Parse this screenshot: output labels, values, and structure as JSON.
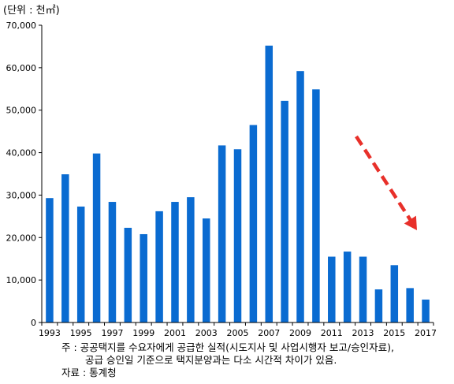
{
  "chart_data": {
    "type": "bar",
    "unit_label": "(단위 : 천㎡)",
    "x": [
      1993,
      1994,
      1995,
      1996,
      1997,
      1998,
      1999,
      2000,
      2001,
      2002,
      2003,
      2004,
      2005,
      2006,
      2007,
      2008,
      2009,
      2010,
      2011,
      2012,
      2013,
      2014,
      2015,
      2016,
      2017
    ],
    "values": [
      29300,
      34900,
      27300,
      39800,
      28400,
      22300,
      20800,
      26200,
      28400,
      29500,
      24500,
      41700,
      40800,
      46500,
      65200,
      52200,
      59200,
      54900,
      15500,
      16700,
      15500,
      7800,
      13500,
      8100,
      5400
    ],
    "x_tick_labels": [
      "1993",
      "1995",
      "1997",
      "1999",
      "2001",
      "2003",
      "2005",
      "2007",
      "2009",
      "2011",
      "2013",
      "2015",
      "2017"
    ],
    "y_tick_labels": [
      "0",
      "10,000",
      "20,000",
      "30,000",
      "40,000",
      "50,000",
      "60,000",
      "70,000"
    ],
    "ylim": [
      0,
      70000
    ],
    "grid": false,
    "colors": {
      "bar": "#0a6bd1",
      "arrow": "#e8302a"
    },
    "annotation": "dashed red arrow pointing downward over 2013-2017 (declining trend)"
  },
  "notes": {
    "line1": "주 : 공공택지를 수요자에게 공급한 실적(시도지사 및 사업시행자 보고/승인자료),",
    "line2": "공급 승인일 기준으로 택지분양과는 다소 시간적 차이가 있음.",
    "source": "자료 : 통계청"
  }
}
